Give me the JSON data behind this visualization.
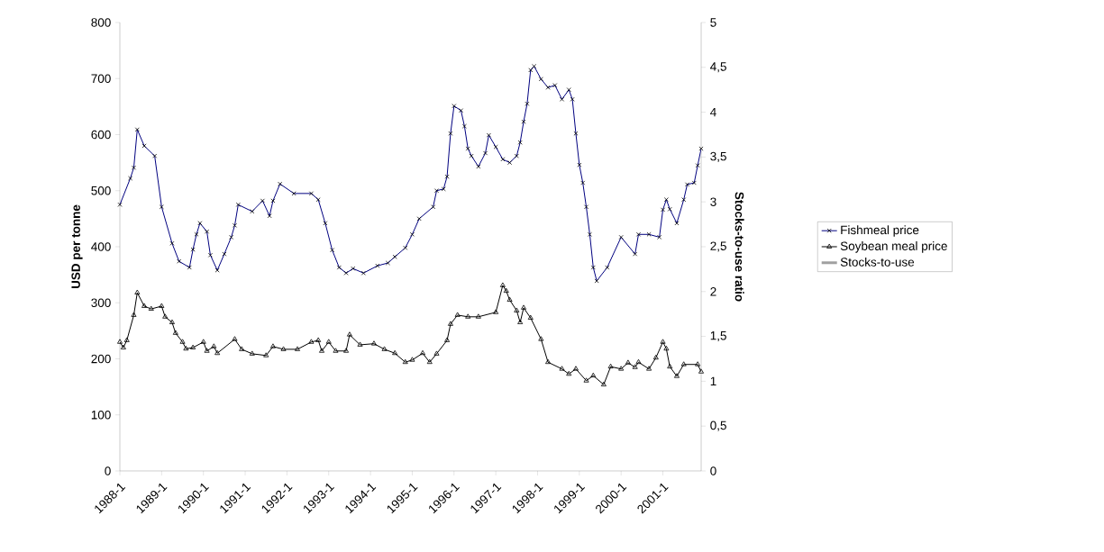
{
  "chart_data": {
    "type": "line",
    "ylabel": "USD per tonne",
    "y2label": "Stocks-to-use ratio",
    "xlim": [
      "1988-01",
      "2001-12"
    ],
    "xticks": [
      {
        "value": "1988-01",
        "label": "1988-1"
      },
      {
        "value": "1989-01",
        "label": "1989-1"
      },
      {
        "value": "1990-01",
        "label": "1990-1"
      },
      {
        "value": "1991-01",
        "label": "1991-1"
      },
      {
        "value": "1992-01",
        "label": "1992-1"
      },
      {
        "value": "1993-01",
        "label": "1993-1"
      },
      {
        "value": "1994-01",
        "label": "1994-1"
      },
      {
        "value": "1995-01",
        "label": "1995-1"
      },
      {
        "value": "1996-01",
        "label": "1996-1"
      },
      {
        "value": "1997-01",
        "label": "1997-1"
      },
      {
        "value": "1998-01",
        "label": "1998-1"
      },
      {
        "value": "1999-01",
        "label": "1999-1"
      },
      {
        "value": "2000-01",
        "label": "2000-1"
      },
      {
        "value": "2001-01",
        "label": "2001-1"
      }
    ],
    "ylim": [
      0,
      800
    ],
    "yticks": [
      0,
      100,
      200,
      300,
      400,
      500,
      600,
      700,
      800
    ],
    "y2lim": [
      0,
      5
    ],
    "y2ticks": [
      0,
      {
        "value": 0.5,
        "label": "0,5"
      },
      1,
      {
        "value": 1.5,
        "label": "1,5"
      },
      2,
      {
        "value": 2.5,
        "label": "2,5"
      },
      3,
      {
        "value": 3.5,
        "label": "3,5"
      },
      4,
      {
        "value": 4.5,
        "label": "4,5"
      },
      5
    ],
    "legend": "right",
    "grid": false,
    "line_style": "solid",
    "series": [
      {
        "name": "Fishmeal price",
        "color": "#000080",
        "marker": "cross",
        "x": [
          "1988-01",
          "1988-04",
          "1988-05",
          "1988-06",
          "1988-08",
          "1988-11",
          "1989-01",
          "1989-04",
          "1989-06",
          "1989-09",
          "1989-10",
          "1989-11",
          "1989-12",
          "1990-02",
          "1990-03",
          "1990-05",
          "1990-07",
          "1990-09",
          "1990-10",
          "1990-11",
          "1991-03",
          "1991-06",
          "1991-08",
          "1991-09",
          "1991-11",
          "1992-03",
          "1992-08",
          "1992-10",
          "1992-12",
          "1993-02",
          "1993-04",
          "1993-06",
          "1993-08",
          "1993-11",
          "1994-03",
          "1994-06",
          "1994-08",
          "1994-11",
          "1995-01",
          "1995-03",
          "1995-07",
          "1995-08",
          "1995-10",
          "1995-11",
          "1995-12",
          "1996-01",
          "1996-03",
          "1996-04",
          "1996-05",
          "1996-06",
          "1996-08",
          "1996-10",
          "1996-11",
          "1997-01",
          "1997-03",
          "1997-05",
          "1997-07",
          "1997-08",
          "1997-09",
          "1997-10",
          "1997-11",
          "1997-12",
          "1998-02",
          "1998-04",
          "1998-06",
          "1998-08",
          "1998-10",
          "1998-11",
          "1998-12",
          "1999-01",
          "1999-02",
          "1999-03",
          "1999-04",
          "1999-05",
          "1999-06",
          "1999-09",
          "2000-01",
          "2000-05",
          "2000-06",
          "2000-09",
          "2000-12",
          "2001-01",
          "2001-02",
          "2001-03",
          "2001-05",
          "2001-07",
          "2001-08",
          "2001-10",
          "2001-11",
          "2001-12"
        ],
        "values": [
          475,
          522,
          541,
          609,
          580,
          562,
          471,
          406,
          374,
          363,
          395,
          422,
          442,
          427,
          385,
          358,
          387,
          417,
          438,
          475,
          463,
          482,
          455,
          482,
          512,
          495,
          495,
          484,
          442,
          394,
          363,
          353,
          361,
          353,
          366,
          371,
          382,
          398,
          422,
          450,
          471,
          500,
          503,
          525,
          602,
          651,
          643,
          615,
          575,
          562,
          543,
          567,
          599,
          578,
          556,
          550,
          562,
          586,
          623,
          655,
          715,
          722,
          699,
          684,
          688,
          663,
          680,
          663,
          602,
          546,
          514,
          471,
          422,
          363,
          339,
          363,
          417,
          387,
          422,
          422,
          417,
          466,
          484,
          467,
          442,
          484,
          511,
          514,
          545,
          575
        ]
      },
      {
        "name": "Soybean meal price",
        "color": "#000000",
        "marker": "triangle",
        "x": [
          "1988-01",
          "1988-02",
          "1988-03",
          "1988-05",
          "1988-06",
          "1988-08",
          "1988-10",
          "1989-01",
          "1989-02",
          "1989-04",
          "1989-05",
          "1989-07",
          "1989-08",
          "1989-10",
          "1990-01",
          "1990-02",
          "1990-04",
          "1990-05",
          "1990-10",
          "1990-12",
          "1991-03",
          "1991-07",
          "1991-09",
          "1991-12",
          "1992-04",
          "1992-08",
          "1992-10",
          "1992-11",
          "1993-01",
          "1993-03",
          "1993-06",
          "1993-07",
          "1993-10",
          "1994-02",
          "1994-05",
          "1994-08",
          "1994-11",
          "1995-01",
          "1995-04",
          "1995-06",
          "1995-08",
          "1995-11",
          "1995-12",
          "1996-02",
          "1996-05",
          "1996-08",
          "1997-01",
          "1997-03",
          "1997-04",
          "1997-05",
          "1997-07",
          "1997-08",
          "1997-09",
          "1997-11",
          "1998-02",
          "1998-04",
          "1998-08",
          "1998-10",
          "1998-12",
          "1999-03",
          "1999-05",
          "1999-08",
          "1999-10",
          "2000-01",
          "2000-03",
          "2000-05",
          "2000-06",
          "2000-09",
          "2000-11",
          "2001-01",
          "2001-02",
          "2001-03",
          "2001-05",
          "2001-07",
          "2001-11",
          "2001-12"
        ],
        "values": [
          230,
          220,
          233,
          278,
          318,
          294,
          289,
          294,
          275,
          265,
          246,
          230,
          218,
          220,
          230,
          214,
          222,
          210,
          235,
          217,
          209,
          206,
          222,
          217,
          217,
          230,
          233,
          214,
          230,
          214,
          214,
          243,
          225,
          227,
          217,
          210,
          194,
          198,
          210,
          194,
          209,
          233,
          262,
          278,
          275,
          275,
          283,
          331,
          321,
          305,
          286,
          265,
          291,
          273,
          235,
          194,
          182,
          173,
          182,
          161,
          170,
          154,
          186,
          182,
          193,
          185,
          194,
          182,
          202,
          230,
          218,
          186,
          169,
          190,
          190,
          177
        ]
      },
      {
        "name": "Stocks-to-use",
        "color": "#a0a0a0",
        "axis": "y2",
        "marker": "none"
      }
    ]
  }
}
